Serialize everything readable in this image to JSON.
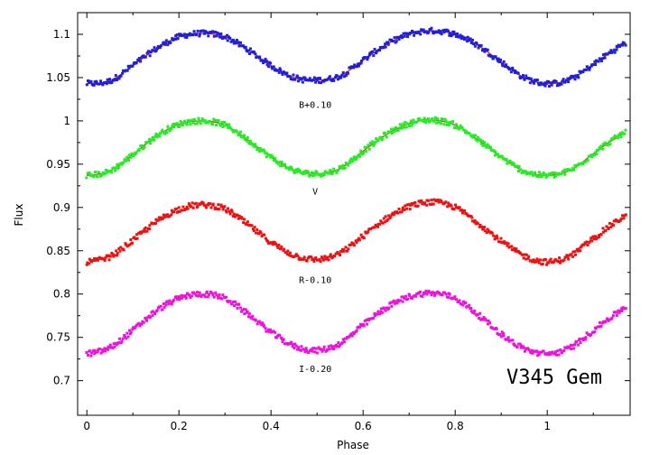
{
  "chart_data": {
    "type": "scatter",
    "title": "",
    "xlabel": "Phase",
    "ylabel": "Flux",
    "xlim": [
      -0.02,
      1.18
    ],
    "ylim": [
      0.66,
      1.125
    ],
    "xticks": [
      0,
      0.2,
      0.4,
      0.6,
      0.8,
      1
    ],
    "xtick_labels": [
      "0",
      "0.2",
      "0.4",
      "0.6",
      "0.8",
      "1"
    ],
    "yticks": [
      0.7,
      0.75,
      0.8,
      0.85,
      0.9,
      0.95,
      1,
      1.05,
      1.1
    ],
    "ytick_labels": [
      "0.7",
      "0.75",
      "0.8",
      "0.85",
      "0.9",
      "0.95",
      "1",
      "1.05",
      "1.1"
    ],
    "grid": false,
    "annotation": "V345 Gem",
    "series": [
      {
        "name": "B+0.10",
        "color": "#1f1fdd",
        "fit_color": "#dd2222",
        "label_pos": [
          0.5,
          1.015
        ],
        "x": [
          0.0,
          0.05,
          0.1,
          0.15,
          0.2,
          0.25,
          0.3,
          0.35,
          0.4,
          0.45,
          0.5,
          0.55,
          0.6,
          0.65,
          0.7,
          0.75,
          0.8,
          0.85,
          0.9,
          0.95,
          1.0,
          1.05,
          1.1,
          1.15,
          1.17
        ],
        "y": [
          1.043,
          1.046,
          1.064,
          1.083,
          1.097,
          1.101,
          1.097,
          1.082,
          1.064,
          1.05,
          1.047,
          1.052,
          1.07,
          1.088,
          1.1,
          1.104,
          1.1,
          1.087,
          1.068,
          1.05,
          1.043,
          1.048,
          1.065,
          1.083,
          1.089
        ]
      },
      {
        "name": "V",
        "color": "#22ee22",
        "fit_color": "#cc3333",
        "label_pos": [
          0.5,
          0.915
        ],
        "x": [
          0.0,
          0.05,
          0.1,
          0.15,
          0.2,
          0.25,
          0.3,
          0.35,
          0.4,
          0.45,
          0.5,
          0.55,
          0.6,
          0.65,
          0.7,
          0.75,
          0.8,
          0.85,
          0.9,
          0.95,
          1.0,
          1.05,
          1.1,
          1.15,
          1.17
        ],
        "y": [
          0.937,
          0.942,
          0.961,
          0.982,
          0.996,
          1.0,
          0.995,
          0.978,
          0.958,
          0.943,
          0.939,
          0.945,
          0.965,
          0.984,
          0.997,
          1.001,
          0.995,
          0.978,
          0.958,
          0.942,
          0.937,
          0.943,
          0.962,
          0.98,
          0.986
        ]
      },
      {
        "name": "R-0.10",
        "color": "#ee1111",
        "label_pos": [
          0.5,
          0.813
        ],
        "x": [
          0.0,
          0.05,
          0.1,
          0.15,
          0.2,
          0.25,
          0.3,
          0.35,
          0.4,
          0.45,
          0.5,
          0.55,
          0.6,
          0.65,
          0.7,
          0.75,
          0.8,
          0.85,
          0.9,
          0.95,
          1.0,
          1.05,
          1.1,
          1.15,
          1.17
        ],
        "y": [
          0.837,
          0.843,
          0.862,
          0.883,
          0.898,
          0.903,
          0.898,
          0.88,
          0.86,
          0.845,
          0.84,
          0.847,
          0.867,
          0.887,
          0.901,
          0.906,
          0.9,
          0.882,
          0.861,
          0.844,
          0.837,
          0.844,
          0.864,
          0.883,
          0.89
        ]
      },
      {
        "name": "I-0.20",
        "color": "#ee11dd",
        "label_pos": [
          0.5,
          0.71
        ],
        "x": [
          0.0,
          0.05,
          0.1,
          0.15,
          0.2,
          0.25,
          0.3,
          0.35,
          0.4,
          0.45,
          0.5,
          0.55,
          0.6,
          0.65,
          0.7,
          0.75,
          0.8,
          0.85,
          0.9,
          0.95,
          1.0,
          1.05,
          1.1,
          1.15,
          1.17
        ],
        "y": [
          0.731,
          0.738,
          0.758,
          0.78,
          0.795,
          0.8,
          0.795,
          0.777,
          0.756,
          0.74,
          0.735,
          0.743,
          0.764,
          0.784,
          0.797,
          0.801,
          0.795,
          0.776,
          0.754,
          0.737,
          0.731,
          0.738,
          0.758,
          0.777,
          0.784
        ]
      }
    ]
  }
}
